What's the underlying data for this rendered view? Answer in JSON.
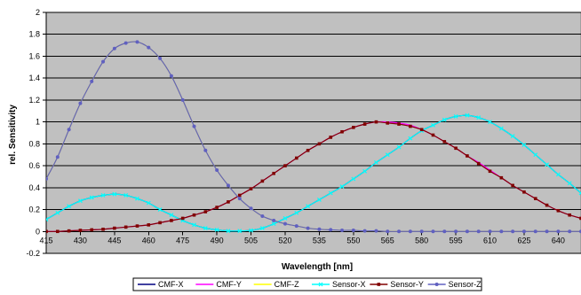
{
  "chart_data": {
    "type": "line",
    "title": "",
    "xlabel": "Wavelength [nm]",
    "ylabel": "rel. Sensitivity",
    "xlim": [
      415,
      650
    ],
    "ylim": [
      -0.2,
      2
    ],
    "x_ticks": [
      415,
      430,
      445,
      460,
      475,
      490,
      505,
      520,
      535,
      550,
      565,
      580,
      595,
      610,
      625,
      640
    ],
    "y_ticks": [
      -0.2,
      0,
      0.2,
      0.4,
      0.6,
      0.8,
      1,
      1.2,
      1.4,
      1.6,
      1.8,
      2
    ],
    "y_tick_labels": [
      "-0.2",
      "0",
      "0.2",
      "0.4",
      "0.6",
      "0.8",
      "1",
      "1.2",
      "1.4",
      "1.6",
      "1.8",
      "2"
    ],
    "x_tick_labels": [
      "415",
      "430",
      "445",
      "460",
      "475",
      "490",
      "505",
      "520",
      "535",
      "550",
      "565",
      "580",
      "595",
      "610",
      "625",
      "640"
    ],
    "grid": "horizontal",
    "plot_background": "#c0c0c0",
    "legend_position": "bottom",
    "x": [
      415,
      420,
      425,
      430,
      435,
      440,
      445,
      450,
      455,
      460,
      465,
      470,
      475,
      480,
      485,
      490,
      495,
      500,
      505,
      510,
      515,
      520,
      525,
      530,
      535,
      540,
      545,
      550,
      555,
      560,
      565,
      570,
      575,
      580,
      585,
      590,
      595,
      600,
      605,
      610,
      615,
      620,
      625,
      630,
      635,
      640,
      645,
      650
    ],
    "series": [
      {
        "name": "CMF-X",
        "color": "#000080",
        "marker": "none",
        "values": [
          0.11,
          0.17,
          0.23,
          0.28,
          0.31,
          0.33,
          0.34,
          0.33,
          0.3,
          0.26,
          0.2,
          0.15,
          0.1,
          0.06,
          0.03,
          0.015,
          0.005,
          0.005,
          0.01,
          0.03,
          0.07,
          0.12,
          0.17,
          0.23,
          0.29,
          0.35,
          0.41,
          0.48,
          0.55,
          0.63,
          0.7,
          0.77,
          0.85,
          0.92,
          0.97,
          1.02,
          1.05,
          1.06,
          1.04,
          1.0,
          0.94,
          0.87,
          0.79,
          0.7,
          0.61,
          0.52,
          0.44,
          0.35
        ]
      },
      {
        "name": "CMF-Y",
        "color": "#ff00ff",
        "marker": "none",
        "values": [
          0.0,
          0.0,
          0.005,
          0.01,
          0.015,
          0.02,
          0.03,
          0.04,
          0.05,
          0.06,
          0.08,
          0.1,
          0.12,
          0.15,
          0.18,
          0.22,
          0.27,
          0.33,
          0.39,
          0.46,
          0.53,
          0.6,
          0.67,
          0.74,
          0.8,
          0.86,
          0.91,
          0.95,
          0.98,
          1.0,
          1.0,
          0.99,
          0.97,
          0.93,
          0.88,
          0.82,
          0.76,
          0.69,
          0.63,
          0.56,
          0.49,
          0.42,
          0.36,
          0.3,
          0.24,
          0.19,
          0.15,
          0.12
        ]
      },
      {
        "name": "CMF-Z",
        "color": "#ffff00",
        "marker": "none",
        "values": [
          0.48,
          0.68,
          0.93,
          1.17,
          1.37,
          1.55,
          1.67,
          1.72,
          1.73,
          1.68,
          1.58,
          1.42,
          1.2,
          0.96,
          0.74,
          0.56,
          0.42,
          0.3,
          0.21,
          0.14,
          0.1,
          0.07,
          0.05,
          0.03,
          0.02,
          0.015,
          0.01,
          0.01,
          0.005,
          0.005,
          0.0,
          0.0,
          0.0,
          0.0,
          0.0,
          0.0,
          0.0,
          0.0,
          0.0,
          0.0,
          0.0,
          0.0,
          0.0,
          0.0,
          0.0,
          0.0,
          0.0,
          0.0
        ]
      },
      {
        "name": "Sensor-X",
        "color": "#00ffff",
        "marker": "x",
        "values": [
          0.11,
          0.17,
          0.23,
          0.28,
          0.31,
          0.33,
          0.34,
          0.33,
          0.3,
          0.26,
          0.2,
          0.15,
          0.1,
          0.06,
          0.03,
          0.015,
          0.005,
          0.005,
          0.01,
          0.03,
          0.07,
          0.12,
          0.17,
          0.23,
          0.29,
          0.35,
          0.41,
          0.48,
          0.55,
          0.63,
          0.7,
          0.77,
          0.85,
          0.92,
          0.97,
          1.02,
          1.05,
          1.06,
          1.04,
          1.0,
          0.94,
          0.87,
          0.79,
          0.7,
          0.61,
          0.52,
          0.44,
          0.35
        ]
      },
      {
        "name": "Sensor-Y",
        "color": "#800000",
        "marker": "square",
        "values": [
          0.0,
          0.0,
          0.005,
          0.01,
          0.015,
          0.02,
          0.03,
          0.04,
          0.05,
          0.06,
          0.08,
          0.1,
          0.12,
          0.15,
          0.18,
          0.22,
          0.27,
          0.33,
          0.39,
          0.46,
          0.53,
          0.6,
          0.67,
          0.74,
          0.8,
          0.86,
          0.91,
          0.95,
          0.98,
          1.0,
          0.99,
          0.98,
          0.96,
          0.93,
          0.88,
          0.82,
          0.76,
          0.69,
          0.62,
          0.55,
          0.49,
          0.42,
          0.36,
          0.3,
          0.24,
          0.19,
          0.15,
          0.12
        ]
      },
      {
        "name": "Sensor-Z",
        "color": "#6060c0",
        "marker": "circle",
        "values": [
          0.48,
          0.68,
          0.93,
          1.17,
          1.37,
          1.55,
          1.67,
          1.72,
          1.73,
          1.68,
          1.58,
          1.42,
          1.2,
          0.96,
          0.74,
          0.56,
          0.42,
          0.3,
          0.21,
          0.14,
          0.1,
          0.07,
          0.05,
          0.03,
          0.02,
          0.015,
          0.01,
          0.01,
          0.005,
          0.005,
          0.0,
          0.0,
          0.0,
          0.0,
          0.0,
          0.0,
          0.0,
          0.0,
          0.0,
          0.0,
          0.0,
          0.0,
          0.0,
          0.0,
          0.0,
          0.0,
          0.0,
          0.0
        ]
      }
    ]
  }
}
